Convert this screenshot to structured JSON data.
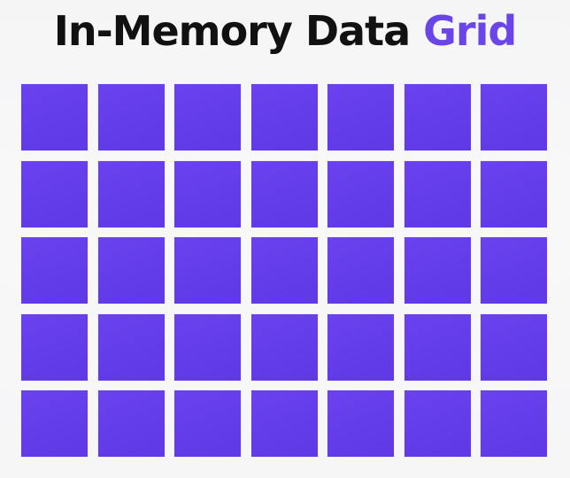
{
  "title": {
    "main": "In-Memory Data",
    "accent": "Grid"
  },
  "grid": {
    "rows": 5,
    "columns": 7,
    "cell_color": "#6440eb",
    "accent_color": "#6a46e8"
  }
}
